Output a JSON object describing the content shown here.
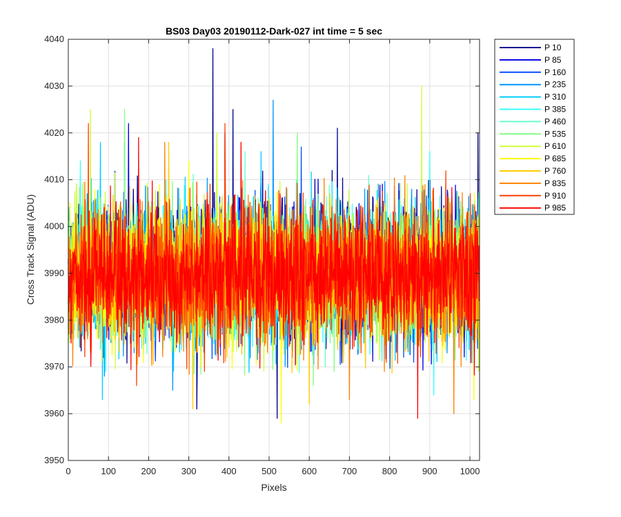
{
  "chart_data": {
    "type": "line",
    "title": "BS03 Day03 20190112-Dark-027 int time = 5 sec",
    "xlabel": "Pixels",
    "ylabel": "Cross Track Signal (ADU)",
    "xlim": [
      0,
      1024
    ],
    "ylim": [
      3950,
      4040
    ],
    "xticks": [
      0,
      100,
      200,
      300,
      400,
      500,
      600,
      700,
      800,
      900,
      1000
    ],
    "yticks": [
      3950,
      3960,
      3970,
      3980,
      3990,
      4000,
      4010,
      4020,
      4030,
      4040
    ],
    "grid": true,
    "legend_position": "outside-top-right",
    "n_points": 1024,
    "mean": 3990,
    "series": [
      {
        "name": "P 10",
        "color": "#00008f",
        "mean": 3991,
        "spikes": [
          [
            360,
            4038
          ],
          [
            410,
            4025
          ],
          [
            320,
            3961
          ],
          [
            520,
            3959
          ],
          [
            670,
            4021
          ],
          [
            1020,
            4020
          ]
        ]
      },
      {
        "name": "P 85",
        "color": "#0000e6",
        "mean": 3991,
        "spikes": [
          [
            150,
            4022
          ],
          [
            390,
            4020
          ],
          [
            700,
            3970
          ]
        ]
      },
      {
        "name": "P 160",
        "color": "#004cff",
        "mean": 3990,
        "spikes": [
          [
            140,
            4018
          ],
          [
            580,
            4017
          ],
          [
            860,
            3971
          ]
        ]
      },
      {
        "name": "P 235",
        "color": "#0096ff",
        "mean": 3990,
        "spikes": [
          [
            510,
            4027
          ],
          [
            260,
            3965
          ],
          [
            90,
            3968
          ]
        ]
      },
      {
        "name": "P 310",
        "color": "#00ccff",
        "mean": 3990,
        "spikes": [
          [
            80,
            4018
          ],
          [
            480,
            4016
          ],
          [
            85,
            3963
          ]
        ]
      },
      {
        "name": "P 385",
        "color": "#33ffff",
        "mean": 3990,
        "spikes": [
          [
            30,
            4014
          ],
          [
            900,
            4016
          ],
          [
            910,
            3964
          ]
        ]
      },
      {
        "name": "P 460",
        "color": "#66ffcc",
        "mean": 3990,
        "spikes": [
          [
            440,
            4016
          ],
          [
            640,
            3970
          ]
        ]
      },
      {
        "name": "P 535",
        "color": "#80ff80",
        "mean": 3990,
        "spikes": [
          [
            140,
            4025
          ],
          [
            570,
            4020
          ],
          [
            610,
            3966
          ]
        ]
      },
      {
        "name": "P 610",
        "color": "#ccff33",
        "mean": 3990,
        "spikes": [
          [
            880,
            4030
          ],
          [
            55,
            4025
          ],
          [
            370,
            4020
          ]
        ]
      },
      {
        "name": "P 685",
        "color": "#ffff00",
        "mean": 3989,
        "spikes": [
          [
            530,
            3958
          ],
          [
            1010,
            3963
          ],
          [
            300,
            4014
          ]
        ]
      },
      {
        "name": "P 760",
        "color": "#ffcc00",
        "mean": 3989,
        "spikes": [
          [
            310,
            3961
          ],
          [
            600,
            3962
          ],
          [
            250,
            4018
          ]
        ]
      },
      {
        "name": "P 835",
        "color": "#ff8000",
        "mean": 3989,
        "spikes": [
          [
            240,
            4018
          ],
          [
            700,
            3963
          ],
          [
            960,
            3960
          ]
        ]
      },
      {
        "name": "P 910",
        "color": "#ff4000",
        "mean": 3990,
        "spikes": [
          [
            50,
            4022
          ],
          [
            390,
            4022
          ],
          [
            170,
            3966
          ]
        ]
      },
      {
        "name": "P 985",
        "color": "#ff0000",
        "mean": 3990,
        "spikes": [
          [
            175,
            4019
          ],
          [
            430,
            4018
          ],
          [
            870,
            3959
          ]
        ]
      }
    ]
  }
}
